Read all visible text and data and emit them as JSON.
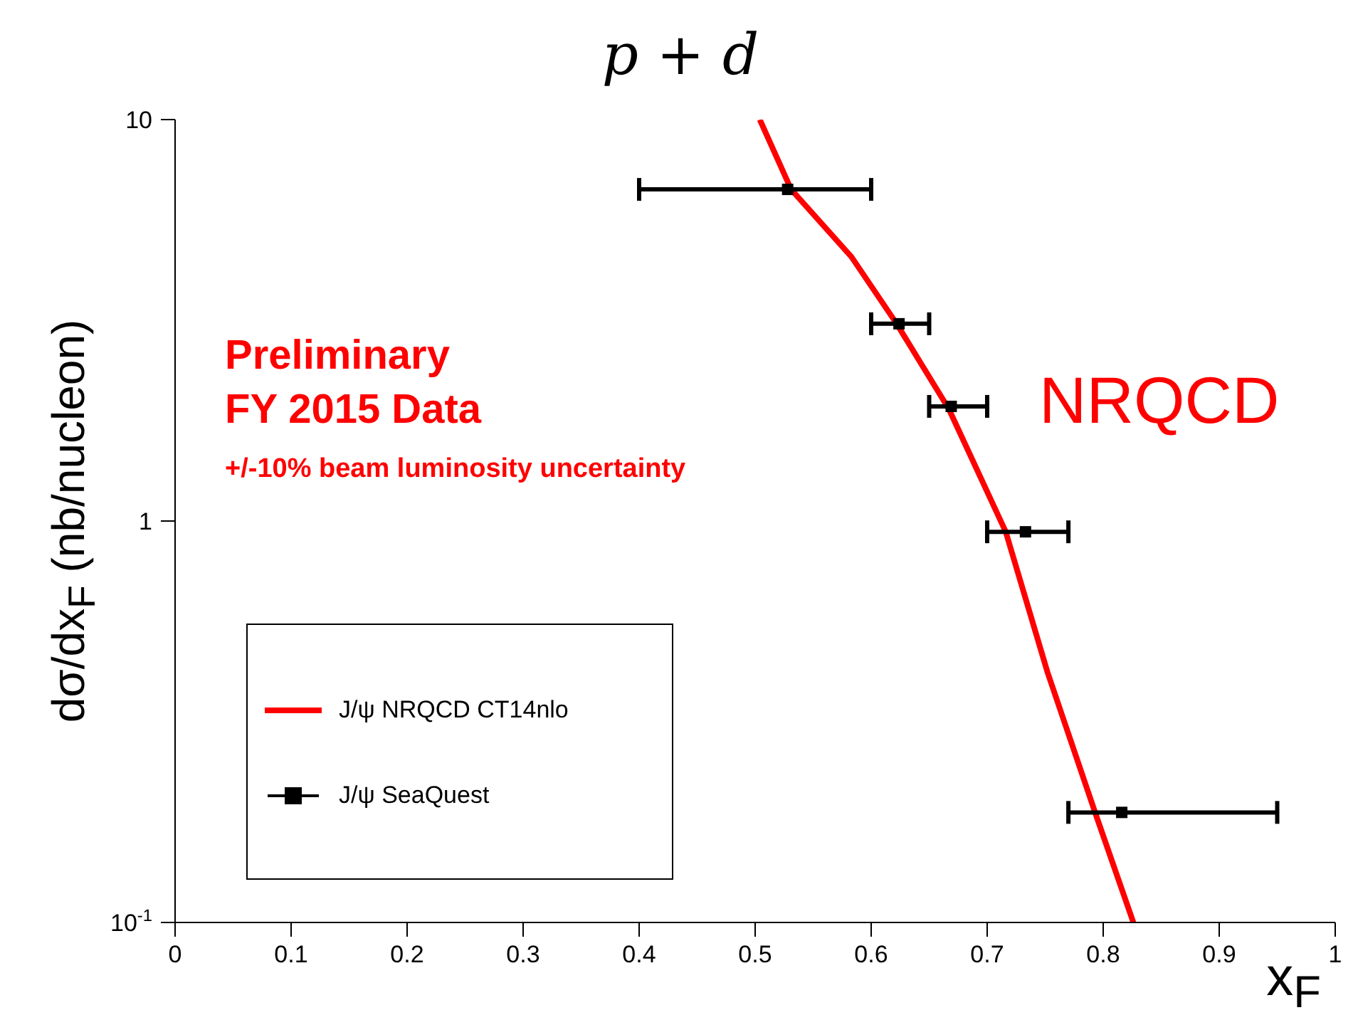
{
  "chart_data": {
    "type": "scatter",
    "title": "p + d",
    "xlabel": "x$_{F}$",
    "ylabel": "dσ/dx$_{F}$ (nb/nucleon)",
    "annotations": [
      "Preliminary",
      "FY 2015 Data",
      "+/-10% beam luminosity uncertainty",
      "NRQCD"
    ],
    "xlim": [
      0,
      1
    ],
    "xticks": [
      0,
      0.1,
      0.2,
      0.3,
      0.4,
      0.5,
      0.6,
      0.7,
      0.8,
      0.9,
      1
    ],
    "ylim": [
      0.1,
      10
    ],
    "yticks": [
      {
        "value": 0.1,
        "label": "10$^{-1}$"
      },
      1,
      10
    ],
    "log": "y",
    "grid": false,
    "legend": "bottom left",
    "series": [
      {
        "name": "J/ψ NRQCD CT14nlo",
        "type": "line",
        "color": "#ff0000",
        "marker": "none",
        "line_style": "solid",
        "x": [
          0.504,
          0.531,
          0.583,
          0.622,
          0.667,
          0.716,
          0.752,
          0.793,
          0.826
        ],
        "values": [
          10,
          6.7,
          4.55,
          3.1,
          1.9,
          0.94,
          0.42,
          0.188,
          0.1
        ]
      },
      {
        "name": "J/ψ SeaQuest",
        "color": "#000000",
        "marker": "square",
        "x": [
          0.528,
          0.624,
          0.669,
          0.733,
          0.816
        ],
        "values": [
          6.7,
          3.1,
          1.93,
          0.94,
          0.188
        ],
        "xerrors": [
          [
            0.4,
            0.6
          ],
          [
            0.6,
            0.65
          ],
          [
            0.65,
            0.7
          ],
          [
            0.7,
            0.77
          ],
          [
            0.77,
            0.95
          ]
        ]
      }
    ]
  }
}
